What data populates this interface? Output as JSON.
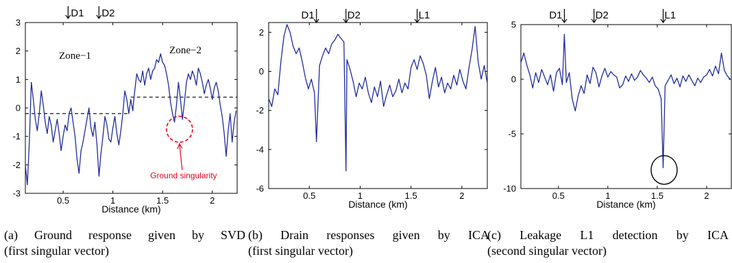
{
  "chart_data": [
    {
      "id": "a",
      "type": "line",
      "xlabel": "Distance (km)",
      "xlim": [
        0.12,
        2.25
      ],
      "ylim": [
        -3,
        3
      ],
      "xticks": [
        0.5,
        1,
        1.5,
        2
      ],
      "yticks": [
        -3,
        -2,
        -1,
        0,
        1,
        2,
        3
      ],
      "line_color": "#1f2a9b",
      "series": [
        {
          "x": [
            0.12,
            0.14,
            0.16,
            0.18,
            0.2,
            0.22,
            0.24,
            0.26,
            0.28,
            0.3,
            0.32,
            0.34,
            0.36,
            0.38,
            0.4,
            0.42,
            0.44,
            0.46,
            0.48,
            0.5,
            0.52,
            0.54,
            0.56,
            0.58,
            0.6,
            0.62,
            0.64,
            0.66,
            0.68,
            0.7,
            0.72,
            0.74,
            0.76,
            0.78,
            0.8,
            0.82,
            0.84,
            0.86,
            0.88,
            0.9,
            0.92,
            0.94,
            0.96,
            0.98,
            1.0,
            1.02,
            1.04,
            1.06,
            1.08,
            1.1,
            1.12,
            1.14,
            1.16,
            1.18,
            1.2,
            1.22,
            1.24,
            1.26,
            1.28,
            1.3,
            1.32,
            1.34,
            1.36,
            1.38,
            1.4,
            1.42,
            1.44,
            1.46,
            1.48,
            1.5,
            1.52,
            1.54,
            1.56,
            1.58,
            1.6,
            1.62,
            1.64,
            1.66,
            1.68,
            1.7,
            1.72,
            1.74,
            1.76,
            1.78,
            1.8,
            1.82,
            1.84,
            1.86,
            1.88,
            1.9,
            1.92,
            1.94,
            1.96,
            1.98,
            2.0,
            2.02,
            2.04,
            2.06,
            2.08,
            2.1,
            2.12,
            2.14,
            2.16,
            2.18,
            2.2,
            2.22,
            2.24
          ],
          "y": [
            -2.0,
            -2.7,
            -1.2,
            0.9,
            0.3,
            -0.4,
            -0.8,
            -0.2,
            0.6,
            0.1,
            -0.5,
            -0.9,
            -0.3,
            -0.6,
            -1.2,
            -0.8,
            -0.4,
            -0.9,
            -1.5,
            -1.0,
            -0.6,
            -0.8,
            -0.2,
            0.0,
            -0.5,
            -1.0,
            -1.8,
            -2.3,
            -1.5,
            -1.2,
            -0.8,
            -0.4,
            0.0,
            -0.7,
            -1.0,
            -0.5,
            -1.3,
            -2.4,
            -1.6,
            -1.0,
            -0.3,
            -0.6,
            -1.1,
            -1.2,
            -0.7,
            -0.3,
            -0.9,
            -1.3,
            -0.8,
            -0.2,
            0.6,
            0.3,
            -0.2,
            0.3,
            -0.1,
            0.6,
            1.2,
            1.0,
            0.9,
            1.3,
            0.8,
            1.2,
            1.4,
            1.0,
            1.3,
            1.4,
            1.7,
            1.6,
            1.9,
            1.6,
            1.5,
            1.2,
            0.8,
            0.2,
            -0.2,
            -0.5,
            0.1,
            0.9,
            0.3,
            -0.4,
            0.2,
            0.9,
            1.2,
            1.0,
            1.3,
            1.1,
            0.8,
            1.4,
            1.2,
            0.9,
            0.5,
            0.8,
            1.0,
            0.7,
            0.3,
            0.7,
            0.9,
            0.6,
            0.1,
            -0.3,
            -0.9,
            -1.7,
            -0.8,
            -0.2,
            -1.2,
            -0.5,
            -0.1
          ]
        }
      ],
      "dashed_levels": [
        {
          "x": [
            0.12,
            1.15
          ],
          "y": -0.2
        },
        {
          "x": [
            1.18,
            2.25
          ],
          "y": 0.38
        }
      ],
      "annotations": {
        "top_markers": [
          {
            "label": "D1",
            "x": 0.55
          },
          {
            "label": "D2",
            "x": 0.86
          }
        ],
        "zone1": "Zone−1",
        "zone2": "Zone−2",
        "singularity_label": "Ground singularity",
        "singularity_circle": {
          "x": 1.67,
          "y": -0.75
        }
      }
    },
    {
      "id": "b",
      "type": "line",
      "xlabel": "Distance (km)",
      "xlim": [
        0.1,
        2.25
      ],
      "ylim": [
        -6,
        2.5
      ],
      "xticks": [
        0.5,
        1,
        1.5,
        2
      ],
      "yticks": [
        -6,
        -4,
        -2,
        0,
        2
      ],
      "line_color": "#1f2a9b",
      "series": [
        {
          "x": [
            0.1,
            0.13,
            0.16,
            0.19,
            0.22,
            0.25,
            0.28,
            0.31,
            0.34,
            0.37,
            0.4,
            0.43,
            0.46,
            0.49,
            0.52,
            0.55,
            0.57,
            0.6,
            0.63,
            0.66,
            0.69,
            0.72,
            0.75,
            0.78,
            0.81,
            0.84,
            0.86,
            0.87,
            0.9,
            0.93,
            0.96,
            0.99,
            1.02,
            1.05,
            1.08,
            1.11,
            1.14,
            1.17,
            1.2,
            1.23,
            1.26,
            1.29,
            1.32,
            1.35,
            1.38,
            1.41,
            1.44,
            1.47,
            1.5,
            1.53,
            1.56,
            1.59,
            1.62,
            1.65,
            1.68,
            1.71,
            1.74,
            1.77,
            1.8,
            1.83,
            1.86,
            1.89,
            1.92,
            1.95,
            1.98,
            2.01,
            2.04,
            2.07,
            2.1,
            2.13,
            2.16,
            2.19,
            2.22,
            2.25
          ],
          "y": [
            -1.4,
            -1.8,
            -0.9,
            -1.2,
            0.5,
            1.8,
            2.4,
            2.0,
            1.3,
            0.9,
            1.2,
            0.5,
            -0.3,
            -0.9,
            -0.4,
            -1.1,
            -3.6,
            0.3,
            0.8,
            1.2,
            0.9,
            1.4,
            1.6,
            1.9,
            1.7,
            1.5,
            -5.1,
            0.6,
            0.1,
            -0.5,
            -1.3,
            -0.6,
            -0.9,
            -0.3,
            -1.1,
            -1.6,
            -0.8,
            -1.3,
            -0.5,
            -1.8,
            -1.2,
            -0.7,
            -1.3,
            -1.0,
            -0.4,
            -1.1,
            -0.6,
            -0.9,
            0.2,
            0.6,
            0.1,
            0.8,
            0.4,
            -0.2,
            -1.4,
            -0.5,
            0.2,
            -0.8,
            -0.3,
            -1.1,
            -0.6,
            -0.9,
            -0.2,
            -0.7,
            0.1,
            -0.5,
            -0.9,
            0.2,
            1.1,
            2.3,
            0.5,
            -0.4,
            0.3,
            -0.6
          ]
        }
      ],
      "annotations": {
        "top_markers": [
          {
            "label": "D1",
            "x": 0.57
          },
          {
            "label": "D2",
            "x": 0.86
          },
          {
            "label": "L1",
            "x": 1.56
          }
        ]
      }
    },
    {
      "id": "c",
      "type": "line",
      "xlabel": "Distance (km)",
      "xlim": [
        0.12,
        2.25
      ],
      "ylim": [
        -10,
        5
      ],
      "xticks": [
        0.5,
        1,
        1.5,
        2
      ],
      "yticks": [
        -10,
        -5,
        0,
        5
      ],
      "line_color": "#1f2a9b",
      "series": [
        {
          "x": [
            0.12,
            0.15,
            0.18,
            0.21,
            0.24,
            0.27,
            0.3,
            0.33,
            0.36,
            0.39,
            0.42,
            0.45,
            0.48,
            0.51,
            0.54,
            0.56,
            0.58,
            0.61,
            0.64,
            0.67,
            0.7,
            0.73,
            0.76,
            0.79,
            0.82,
            0.85,
            0.88,
            0.91,
            0.94,
            0.97,
            1.0,
            1.03,
            1.06,
            1.09,
            1.12,
            1.15,
            1.18,
            1.21,
            1.24,
            1.27,
            1.3,
            1.33,
            1.36,
            1.39,
            1.42,
            1.45,
            1.48,
            1.51,
            1.54,
            1.56,
            1.58,
            1.61,
            1.64,
            1.67,
            1.7,
            1.73,
            1.76,
            1.79,
            1.82,
            1.85,
            1.88,
            1.91,
            1.94,
            1.97,
            2.0,
            2.03,
            2.06,
            2.09,
            2.12,
            2.15,
            2.18,
            2.21,
            2.24
          ],
          "y": [
            1.5,
            2.4,
            1.3,
            0.4,
            -0.8,
            0.6,
            -0.3,
            0.9,
            0.2,
            -0.5,
            0.4,
            -1.1,
            0.6,
            1.0,
            -0.5,
            4.1,
            -0.3,
            0.6,
            -1.8,
            -2.9,
            -1.5,
            -0.6,
            -1.3,
            0.4,
            -0.4,
            1.1,
            0.6,
            -0.7,
            0.3,
            1.0,
            0.2,
            0.7,
            0.4,
            0.2,
            -0.8,
            -0.5,
            0.3,
            -0.2,
            0.5,
            -0.1,
            0.2,
            0.8,
            0.4,
            0.1,
            -0.3,
            0.2,
            -0.6,
            -0.9,
            -1.8,
            -8.1,
            -0.6,
            -0.1,
            0.4,
            -0.4,
            0.1,
            -0.7,
            0.3,
            -0.2,
            0.4,
            -0.1,
            -0.6,
            0.1,
            -0.3,
            0.2,
            0.4,
            0.9,
            0.3,
            1.2,
            0.5,
            2.4,
            0.8,
            0.3,
            0.0
          ]
        }
      ],
      "annotations": {
        "top_markers": [
          {
            "label": "D1",
            "x": 0.56
          },
          {
            "label": "D2",
            "x": 0.86
          },
          {
            "label": "L1",
            "x": 1.56
          }
        ],
        "leak_circle": {
          "x": 1.57,
          "y": -8.3
        }
      }
    }
  ],
  "captions": [
    {
      "line1": "(a)  Ground response given by SVD",
      "line2": "(first singular vector)"
    },
    {
      "line1": "(b)  Drain responses given by ICA",
      "line2": "(first singular vector)"
    },
    {
      "line1": "(c)  Leakage L1 detection by ICA",
      "line2": "(second singular vector)"
    }
  ]
}
